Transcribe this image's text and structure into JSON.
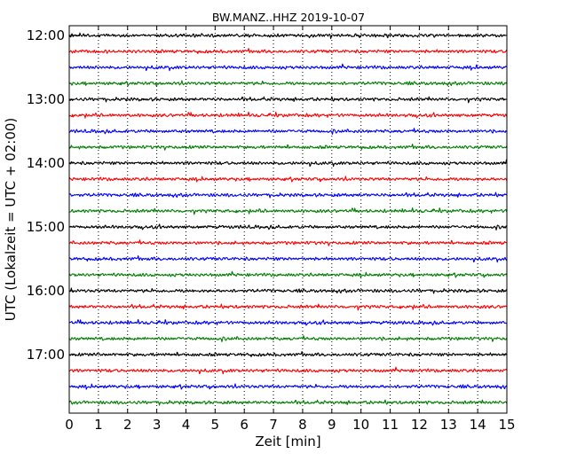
{
  "chart_data": {
    "type": "line",
    "title": "BW.MANZ..HHZ 2019-10-07",
    "xlabel": "Zeit  [min]",
    "ylabel": "UTC (Lokalzeit = UTC + 02:00)",
    "xlim": [
      0,
      15
    ],
    "x_ticks": [
      "0",
      "1",
      "2",
      "3",
      "4",
      "5",
      "6",
      "7",
      "8",
      "9",
      "10",
      "11",
      "12",
      "13",
      "14",
      "15"
    ],
    "y_tick_labels": [
      "12:00",
      "13:00",
      "14:00",
      "15:00",
      "16:00",
      "17:00"
    ],
    "traces_per_hour": 4,
    "trace_minutes": 15,
    "trace_start_times": [
      "12:00",
      "12:15",
      "12:30",
      "12:45",
      "13:00",
      "13:15",
      "13:30",
      "13:45",
      "14:00",
      "14:15",
      "14:30",
      "14:45",
      "15:00",
      "15:15",
      "15:30",
      "15:45",
      "16:00",
      "16:15",
      "16:30",
      "16:45",
      "17:00",
      "17:15",
      "17:30",
      "17:45"
    ],
    "trace_colors": [
      "#000000",
      "#ff0000",
      "#0000ff",
      "#007f00"
    ],
    "grid": "vertical dotted at each minute",
    "legend": "none"
  }
}
